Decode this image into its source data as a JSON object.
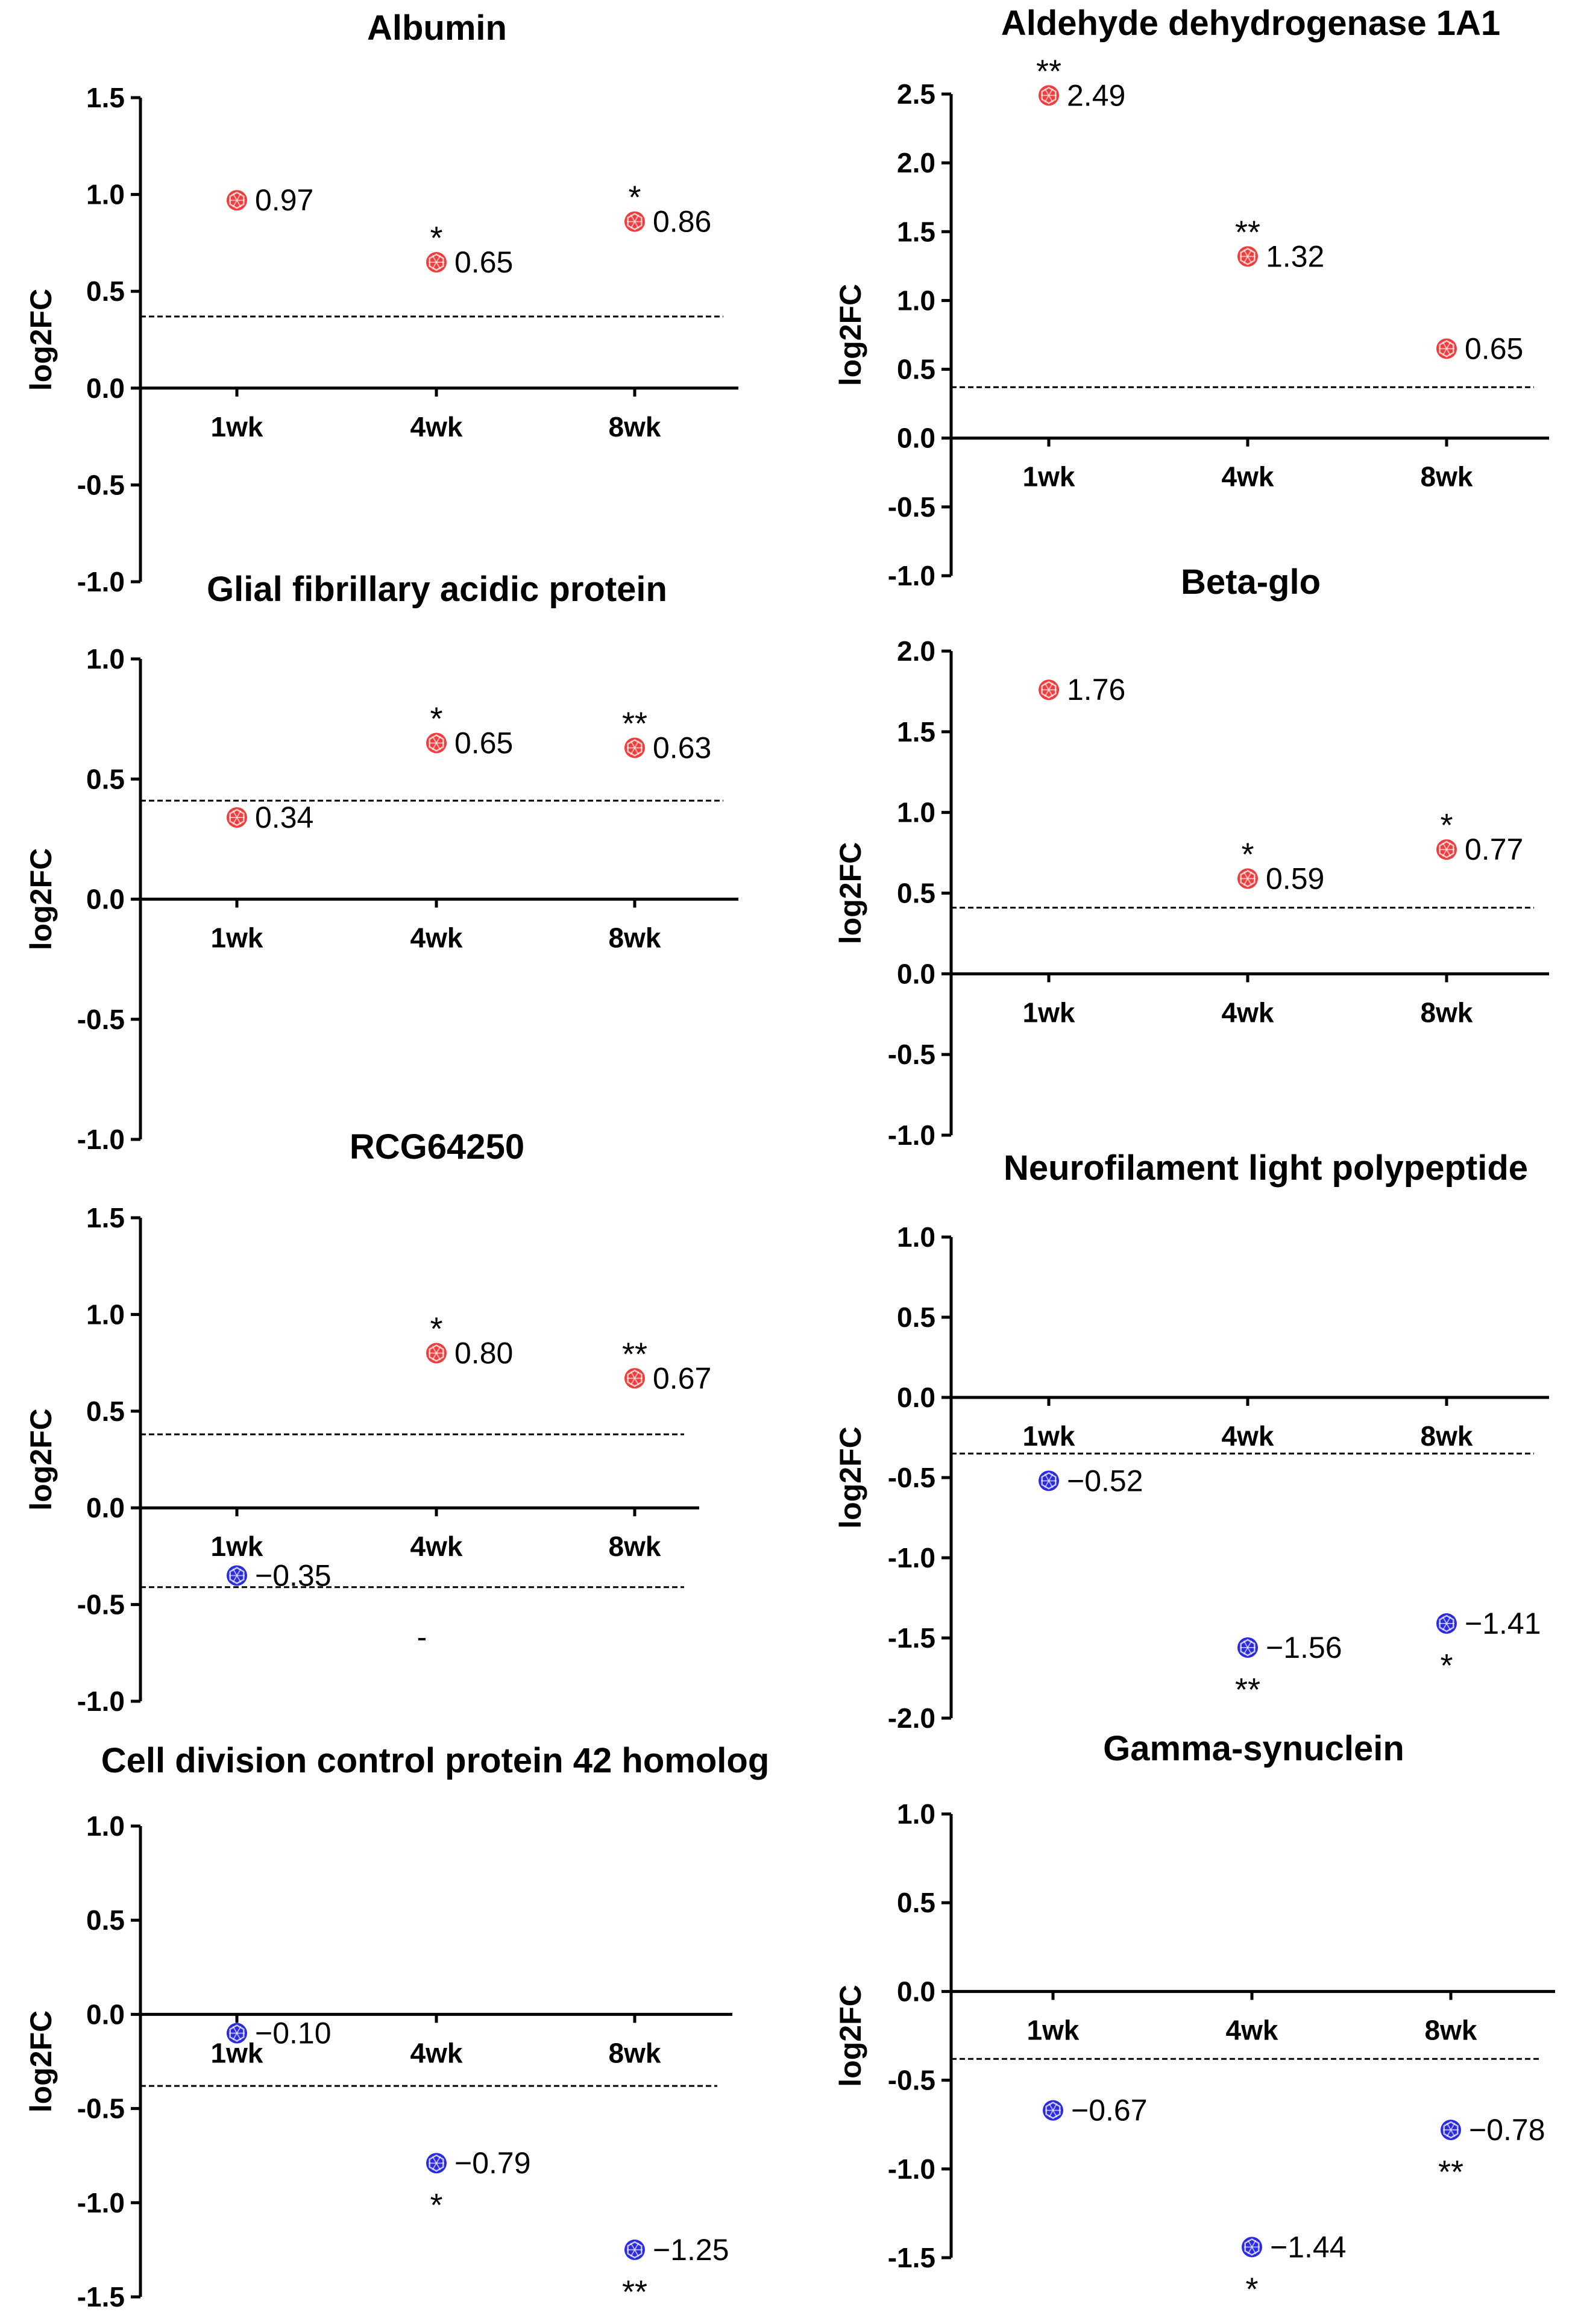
{
  "chart_data": [
    {
      "type": "scatter",
      "title": "Albumin",
      "ylabel": "log2FC",
      "categories": [
        "1wk",
        "4wk",
        "8wk"
      ],
      "ylim": [
        -1.0,
        1.5
      ],
      "yticks": [
        "1.5",
        "1.0",
        "0.5",
        "0.0",
        "-0.5",
        "-1.0"
      ],
      "ytick_values": [
        1.5,
        1.0,
        0.5,
        0.0,
        -0.5,
        -1.0
      ],
      "threshold": [
        0.37
      ],
      "points": [
        {
          "cat": "1wk",
          "value": 0.97,
          "label": "0.97",
          "sig": "",
          "color": "#f03c3c"
        },
        {
          "cat": "4wk",
          "value": 0.65,
          "label": "0.65",
          "sig": "*",
          "color": "#f03c3c"
        },
        {
          "cat": "8wk",
          "value": 0.86,
          "label": "0.86",
          "sig": "*",
          "color": "#f03c3c"
        }
      ]
    },
    {
      "type": "scatter",
      "title": "Aldehyde dehydrogenase 1A1",
      "ylabel": "log2FC",
      "categories": [
        "1wk",
        "4wk",
        "8wk"
      ],
      "ylim": [
        -1.0,
        2.5
      ],
      "yticks": [
        "2.5",
        "2.0",
        "1.5",
        "1.0",
        "0.5",
        "0.0",
        "-0.5",
        "-1.0"
      ],
      "ytick_values": [
        2.5,
        2.0,
        1.5,
        1.0,
        0.5,
        0.0,
        -0.5,
        -1.0
      ],
      "threshold": [
        0.37
      ],
      "points": [
        {
          "cat": "1wk",
          "value": 2.49,
          "label": "2.49",
          "sig": "**",
          "color": "#f03c3c"
        },
        {
          "cat": "4wk",
          "value": 1.32,
          "label": "1.32",
          "sig": "**",
          "color": "#f03c3c"
        },
        {
          "cat": "8wk",
          "value": 0.65,
          "label": "0.65",
          "sig": "",
          "color": "#f03c3c"
        }
      ]
    },
    {
      "type": "scatter",
      "title": "Glial fibrillary acidic protein",
      "ylabel": "log2FC",
      "categories": [
        "1wk",
        "4wk",
        "8wk"
      ],
      "ylim": [
        -1.0,
        1.0
      ],
      "yticks": [
        "1.0",
        "0.5",
        "0.0",
        "-0.5",
        "-1.0"
      ],
      "ytick_values": [
        1.0,
        0.5,
        0.0,
        -0.5,
        -1.0
      ],
      "threshold": [
        0.41
      ],
      "points": [
        {
          "cat": "1wk",
          "value": 0.34,
          "label": "0.34",
          "sig": "",
          "color": "#f03c3c"
        },
        {
          "cat": "4wk",
          "value": 0.65,
          "label": "0.65",
          "sig": "*",
          "color": "#f03c3c"
        },
        {
          "cat": "8wk",
          "value": 0.63,
          "label": "0.63",
          "sig": "**",
          "color": "#f03c3c"
        }
      ]
    },
    {
      "type": "scatter",
      "title": "Beta-glo",
      "ylabel": "log2FC",
      "categories": [
        "1wk",
        "4wk",
        "8wk"
      ],
      "ylim": [
        -1.0,
        2.0
      ],
      "yticks": [
        "2.0",
        "1.5",
        "1.0",
        "0.5",
        "0.0",
        "-0.5",
        "-1.0"
      ],
      "ytick_values": [
        2.0,
        1.5,
        1.0,
        0.5,
        0.0,
        -0.5,
        -1.0
      ],
      "threshold": [
        0.41
      ],
      "points": [
        {
          "cat": "1wk",
          "value": 1.76,
          "label": "1.76",
          "sig": "",
          "color": "#f03c3c"
        },
        {
          "cat": "4wk",
          "value": 0.59,
          "label": "0.59",
          "sig": "*",
          "color": "#f03c3c"
        },
        {
          "cat": "8wk",
          "value": 0.77,
          "label": "0.77",
          "sig": "*",
          "color": "#f03c3c"
        }
      ]
    },
    {
      "type": "scatter",
      "title": "RCG64250",
      "ylabel": "log2FC",
      "categories": [
        "1wk",
        "4wk",
        "8wk"
      ],
      "ylim": [
        -1.0,
        1.5
      ],
      "yticks": [
        "1.5",
        "1.0",
        "0.5",
        "0.0",
        "-0.5",
        "-1.0"
      ],
      "ytick_values": [
        1.5,
        1.0,
        0.5,
        0.0,
        -0.5,
        -1.0
      ],
      "threshold": [
        0.38,
        -0.41
      ],
      "stray_mark": "-",
      "points": [
        {
          "cat": "1wk",
          "value": -0.35,
          "label": "−0.35",
          "sig": "",
          "color": "#2a2ae0"
        },
        {
          "cat": "4wk",
          "value": 0.8,
          "label": "0.80",
          "sig": "*",
          "color": "#f03c3c"
        },
        {
          "cat": "8wk",
          "value": 0.67,
          "label": "0.67",
          "sig": "**",
          "color": "#f03c3c"
        }
      ]
    },
    {
      "type": "scatter",
      "title": "Neurofilament light polypeptide",
      "ylabel": "log2FC",
      "categories": [
        "1wk",
        "4wk",
        "8wk"
      ],
      "ylim": [
        -2.0,
        1.0
      ],
      "yticks": [
        "1.0",
        "0.5",
        "0.0",
        "-0.5",
        "-1.0",
        "-1.5",
        "-2.0"
      ],
      "ytick_values": [
        1.0,
        0.5,
        0.0,
        -0.5,
        -1.0,
        -1.5,
        -2.0
      ],
      "threshold": [
        -0.35
      ],
      "points": [
        {
          "cat": "1wk",
          "value": -0.52,
          "label": "−0.52",
          "sig": "",
          "color": "#2a2ae0"
        },
        {
          "cat": "4wk",
          "value": -1.56,
          "label": "−1.56",
          "sig": "**",
          "color": "#2a2ae0"
        },
        {
          "cat": "8wk",
          "value": -1.41,
          "label": "−1.41",
          "sig": "*",
          "color": "#2a2ae0"
        }
      ]
    },
    {
      "type": "scatter",
      "title": "Cell division control protein 42 homolog",
      "ylabel": "log2FC",
      "categories": [
        "1wk",
        "4wk",
        "8wk"
      ],
      "ylim": [
        -1.5,
        1.0
      ],
      "yticks": [
        "1.0",
        "0.5",
        "0.0",
        "-0.5",
        "-1.0",
        "-1.5"
      ],
      "ytick_values": [
        1.0,
        0.5,
        0.0,
        -0.5,
        -1.0,
        -1.5
      ],
      "threshold": [
        -0.38
      ],
      "points": [
        {
          "cat": "1wk",
          "value": -0.1,
          "label": "−0.10",
          "sig": "",
          "color": "#2a2ae0"
        },
        {
          "cat": "4wk",
          "value": -0.79,
          "label": "−0.79",
          "sig": "*",
          "color": "#2a2ae0"
        },
        {
          "cat": "8wk",
          "value": -1.25,
          "label": "−1.25",
          "sig": "**",
          "color": "#2a2ae0"
        }
      ]
    },
    {
      "type": "scatter",
      "title": "Gamma-synuclein",
      "ylabel": "log2FC",
      "categories": [
        "1wk",
        "4wk",
        "8wk"
      ],
      "ylim": [
        -1.5,
        1.0
      ],
      "yticks": [
        "1.0",
        "0.5",
        "0.0",
        "-0.5",
        "-1.0",
        "-1.5"
      ],
      "ytick_values": [
        1.0,
        0.5,
        0.0,
        -0.5,
        -1.0,
        -1.5
      ],
      "threshold": [
        -0.38
      ],
      "points": [
        {
          "cat": "1wk",
          "value": -0.67,
          "label": "−0.67",
          "sig": "",
          "color": "#2a2ae0"
        },
        {
          "cat": "4wk",
          "value": -1.44,
          "label": "−1.44",
          "sig": "*",
          "color": "#2a2ae0"
        },
        {
          "cat": "8wk",
          "value": -0.78,
          "label": "−0.78",
          "sig": "**",
          "color": "#2a2ae0"
        }
      ]
    }
  ]
}
